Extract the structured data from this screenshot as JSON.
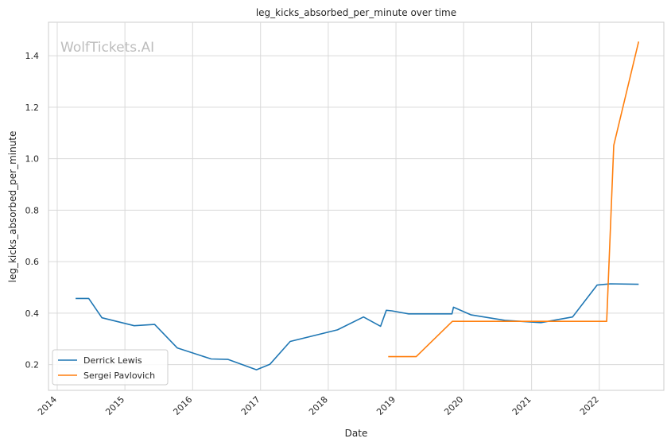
{
  "chart_data": {
    "type": "line",
    "title": "leg_kicks_absorbed_per_minute over time",
    "xlabel": "Date",
    "ylabel": "leg_kicks_absorbed_per_minute",
    "watermark": "WolfTickets.AI",
    "x_ticks": [
      "2014",
      "2015",
      "2016",
      "2017",
      "2018",
      "2019",
      "2020",
      "2021",
      "2022"
    ],
    "y_ticks": [
      "0.2",
      "0.4",
      "0.6",
      "0.8",
      "1.0",
      "1.2",
      "1.4"
    ],
    "xlim": [
      "2013-11-15",
      "2022-12-15"
    ],
    "ylim": [
      0.1,
      1.53
    ],
    "grid": true,
    "legend_position": "lower-left",
    "series": [
      {
        "name": "Derrick Lewis",
        "color": "#1f77b4",
        "points": [
          [
            "2014-04-10",
            0.457
          ],
          [
            "2014-06-20",
            0.457
          ],
          [
            "2014-08-30",
            0.382
          ],
          [
            "2015-02-20",
            0.351
          ],
          [
            "2015-06-10",
            0.356
          ],
          [
            "2015-10-10",
            0.265
          ],
          [
            "2016-04-10",
            0.222
          ],
          [
            "2016-07-10",
            0.22
          ],
          [
            "2016-12-10",
            0.18
          ],
          [
            "2017-02-20",
            0.201
          ],
          [
            "2017-06-10",
            0.29
          ],
          [
            "2018-02-20",
            0.335
          ],
          [
            "2018-07-10",
            0.385
          ],
          [
            "2018-10-10",
            0.349
          ],
          [
            "2018-11-10",
            0.411
          ],
          [
            "2018-12-10",
            0.409
          ],
          [
            "2019-03-10",
            0.397
          ],
          [
            "2019-10-30",
            0.397
          ],
          [
            "2019-11-07",
            0.423
          ],
          [
            "2020-02-10",
            0.393
          ],
          [
            "2020-08-10",
            0.372
          ],
          [
            "2021-02-20",
            0.363
          ],
          [
            "2021-08-10",
            0.385
          ],
          [
            "2021-12-20",
            0.509
          ],
          [
            "2022-03-01",
            0.514
          ],
          [
            "2022-08-01",
            0.512
          ]
        ]
      },
      {
        "name": "Sergei Pavlovich",
        "color": "#ff7f0e",
        "points": [
          [
            "2018-11-20",
            0.231
          ],
          [
            "2019-04-20",
            0.231
          ],
          [
            "2019-11-01",
            0.368
          ],
          [
            "2022-02-10",
            0.368
          ],
          [
            "2022-03-20",
            1.052
          ],
          [
            "2022-08-01",
            1.455
          ]
        ]
      }
    ]
  }
}
